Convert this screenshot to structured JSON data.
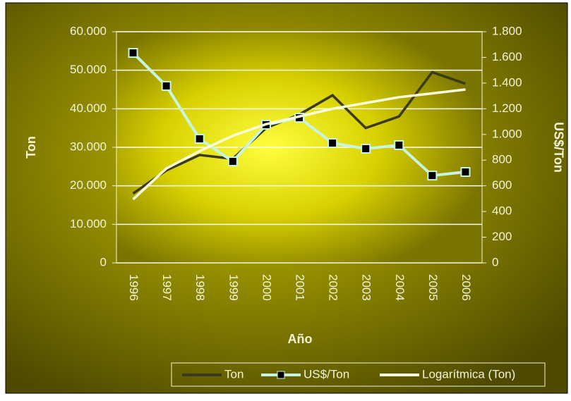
{
  "chart_data": {
    "type": "line",
    "categories": [
      "1996",
      "1997",
      "1998",
      "1999",
      "2000",
      "2001",
      "2002",
      "2003",
      "2004",
      "2005",
      "2006"
    ],
    "series": [
      {
        "name": "Ton",
        "color": "#3a3a1c",
        "values": [
          18000,
          24000,
          28000,
          27000,
          35000,
          38500,
          43500,
          35000,
          38000,
          49500,
          46500
        ]
      },
      {
        "name": "US$/Ton",
        "color": "#c8f5e0",
        "axis": "y2",
        "values": [
          1635,
          1378,
          966,
          790,
          1076,
          1130,
          933,
          889,
          917,
          680,
          708
        ]
      },
      {
        "name": "Logarítmica (Ton)",
        "color": "#ffffe0",
        "values": [
          16500,
          24500,
          29000,
          33000,
          36000,
          38000,
          40000,
          41500,
          43000,
          44000,
          45000
        ]
      }
    ],
    "x_label": "Año",
    "y_label": "Ton",
    "y2_label": "US$/Ton",
    "ylim": [
      0,
      60000
    ],
    "yticks": [
      0,
      {
        "value": 10000,
        "label": "10.000"
      },
      {
        "value": 20000,
        "label": "20.000"
      },
      {
        "value": 30000,
        "label": "30.000"
      },
      {
        "value": 40000,
        "label": "40.000"
      },
      {
        "value": 50000,
        "label": "50.000"
      },
      {
        "value": 60000,
        "label": "60.000"
      }
    ],
    "y2lim": [
      0,
      1800
    ],
    "y2ticks": [
      0,
      200,
      400,
      600,
      800,
      {
        "value": 1000,
        "label": "1.000"
      },
      {
        "value": 1200,
        "label": "1.200"
      },
      {
        "value": 1400,
        "label": "1.400"
      },
      {
        "value": 1600,
        "label": "1.600"
      },
      {
        "value": 1800,
        "label": "1.800"
      }
    ],
    "grid": true
  }
}
